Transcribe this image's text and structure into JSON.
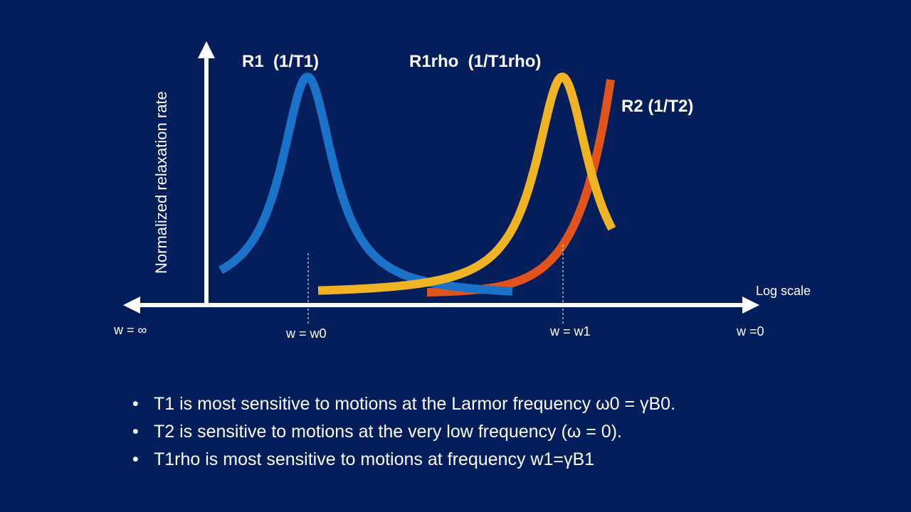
{
  "curves": {
    "r1": {
      "label": "R1  (1/T1)",
      "color": "#1a73c8"
    },
    "r1rho": {
      "label": "R1rho  (1/T1rho)",
      "color": "#f0b323"
    },
    "r2": {
      "label": "R2 (1/T2)",
      "color": "#e0541c"
    }
  },
  "axes": {
    "y_label": "Normalized relaxation rate",
    "x_label": "Log scale",
    "left_end": "w = ∞",
    "w0_label": "w = w0",
    "w1_label": "w = w1",
    "right_end": "w =0"
  },
  "bullets": {
    "bullet_glyph": "•",
    "items": [
      "T1 is most sensitive to motions at the Larmor frequency ω0 = γB0.",
      "T2 is sensitive to motions at the very low frequency (ω = 0).",
      "T1rho is most sensitive to motions at frequency w1=γB1"
    ]
  },
  "colors": {
    "background": "#041e5c",
    "axis": "#ffffff"
  }
}
